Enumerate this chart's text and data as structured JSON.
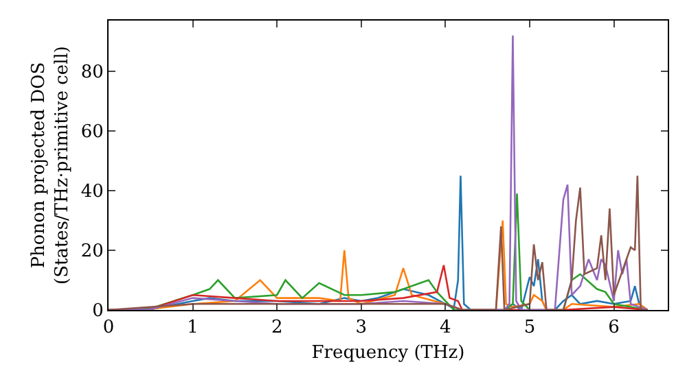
{
  "chart_data": {
    "type": "line",
    "xlabel": "Frequency (THz)",
    "ylabel": "Phonon projected DOS\n(States/THz·primitive cell)",
    "xlim": [
      0,
      6.64
    ],
    "ylim": [
      0,
      97
    ],
    "xticks": [
      0,
      1,
      2,
      3,
      4,
      5,
      6
    ],
    "yticks": [
      0,
      20,
      40,
      60,
      80
    ],
    "series": [
      {
        "color": "#1f77b4",
        "x": [
          0,
          0.5,
          1,
          1.2,
          1.5,
          2,
          2.5,
          2.8,
          3,
          3.2,
          3.5,
          3.8,
          4,
          4.1,
          4.15,
          4.18,
          4.22,
          4.3,
          4.7,
          4.8,
          4.9,
          5,
          5.05,
          5.1,
          5.15,
          5.2,
          5.3,
          5.4,
          5.5,
          5.6,
          5.8,
          6,
          6.2,
          6.25,
          6.3,
          6.4
        ],
        "values": [
          0,
          0.2,
          3,
          4,
          3,
          3,
          2,
          4,
          3,
          4,
          7,
          5,
          2,
          0.5,
          10,
          45,
          2,
          0,
          0,
          2,
          0,
          11,
          8,
          17,
          3,
          0,
          0,
          3,
          5,
          2,
          3,
          2,
          3,
          8,
          2,
          0
        ]
      },
      {
        "color": "#ff7f0e",
        "x": [
          0,
          0.5,
          1,
          1.5,
          1.8,
          2,
          2.5,
          2.75,
          2.8,
          2.85,
          3,
          3.4,
          3.5,
          3.6,
          4,
          4.2,
          4.6,
          4.68,
          4.72,
          4.8,
          5,
          5.05,
          5.15,
          5.2,
          5.4,
          5.5,
          6,
          6.3,
          6.4
        ],
        "values": [
          0,
          0.3,
          2,
          3,
          10,
          4,
          4,
          3,
          20,
          4,
          2,
          5,
          14,
          5,
          2,
          0,
          0,
          30,
          2,
          1,
          2,
          5,
          3,
          0,
          0,
          2,
          1,
          2,
          0
        ]
      },
      {
        "color": "#2ca02c",
        "x": [
          0,
          0.5,
          1,
          1.2,
          1.3,
          1.5,
          2,
          2.1,
          2.3,
          2.5,
          2.8,
          3,
          3.4,
          3.7,
          3.8,
          3.9,
          4.1,
          4.7,
          4.8,
          4.85,
          4.9,
          5,
          5.4,
          5.5,
          5.6,
          5.8,
          5.9,
          6,
          6.4
        ],
        "values": [
          0,
          0.5,
          5,
          7,
          10,
          4,
          5,
          10,
          4,
          9,
          5,
          5,
          6,
          9,
          10,
          6,
          0,
          0,
          2,
          39,
          3,
          0,
          0,
          10,
          12,
          7,
          6,
          2,
          0
        ]
      },
      {
        "color": "#d62728",
        "x": [
          0,
          0.5,
          1,
          1.5,
          2,
          2.5,
          3,
          3.5,
          3.9,
          3.98,
          4.05,
          4.15,
          4.2,
          5.4,
          6,
          6.4
        ],
        "values": [
          0,
          0.3,
          5,
          4,
          3,
          3,
          3,
          4,
          6,
          15,
          4,
          3,
          0,
          0,
          1,
          0
        ]
      },
      {
        "color": "#9467bd",
        "x": [
          0,
          0.5,
          1,
          1.5,
          2,
          3,
          3.5,
          4,
          4.2,
          4.7,
          4.76,
          4.8,
          4.84,
          4.9,
          5.3,
          5.4,
          5.45,
          5.5,
          5.6,
          5.7,
          5.8,
          5.85,
          5.9,
          6,
          6.05,
          6.1,
          6.15,
          6.2,
          6.3,
          6.4
        ],
        "values": [
          0,
          0.2,
          4,
          3,
          2,
          2,
          3,
          2,
          0,
          0,
          2,
          92,
          3,
          0,
          0,
          37,
          42,
          5,
          8,
          17,
          10,
          17,
          15,
          3,
          20,
          12,
          17,
          2,
          1,
          0
        ]
      },
      {
        "color": "#8c564b",
        "x": [
          0,
          1,
          2,
          3,
          4,
          4.2,
          4.6,
          4.66,
          4.7,
          5,
          5.05,
          5.1,
          5.15,
          5.2,
          5.4,
          5.5,
          5.55,
          5.6,
          5.65,
          5.8,
          5.85,
          5.9,
          5.95,
          6,
          6.2,
          6.25,
          6.28,
          6.32,
          6.4
        ],
        "values": [
          0,
          2,
          2,
          2,
          2,
          0,
          0,
          28,
          0,
          2,
          22,
          10,
          16,
          0,
          0,
          10,
          30,
          41,
          12,
          14,
          25,
          10,
          34,
          5,
          21,
          20,
          45,
          0,
          0
        ]
      }
    ]
  }
}
